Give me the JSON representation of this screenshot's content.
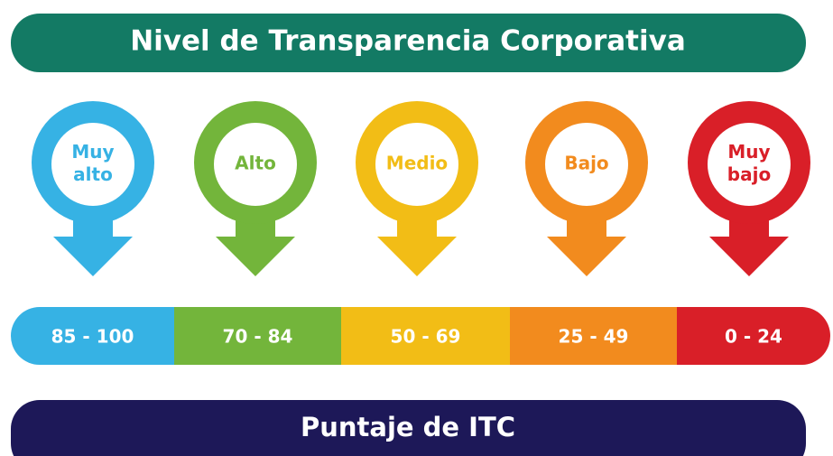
{
  "title": "Nivel de Transparencia Corporativa",
  "levels": [
    {
      "label": [
        "Muy",
        "alto"
      ],
      "range": "85 - 100",
      "color": "#36b2e4"
    },
    {
      "label": [
        "Alto"
      ],
      "range": "70 - 84",
      "color": "#73b53b"
    },
    {
      "label": [
        "Medio"
      ],
      "range": "50 - 69",
      "color": "#f2bd16"
    },
    {
      "label": [
        "Bajo"
      ],
      "range": "25 - 49",
      "color": "#f28b1e"
    },
    {
      "label": [
        "Muy",
        "bajo"
      ],
      "range": "0 - 24",
      "color": "#d91f28"
    }
  ],
  "footer": "Puntaje de ITC"
}
